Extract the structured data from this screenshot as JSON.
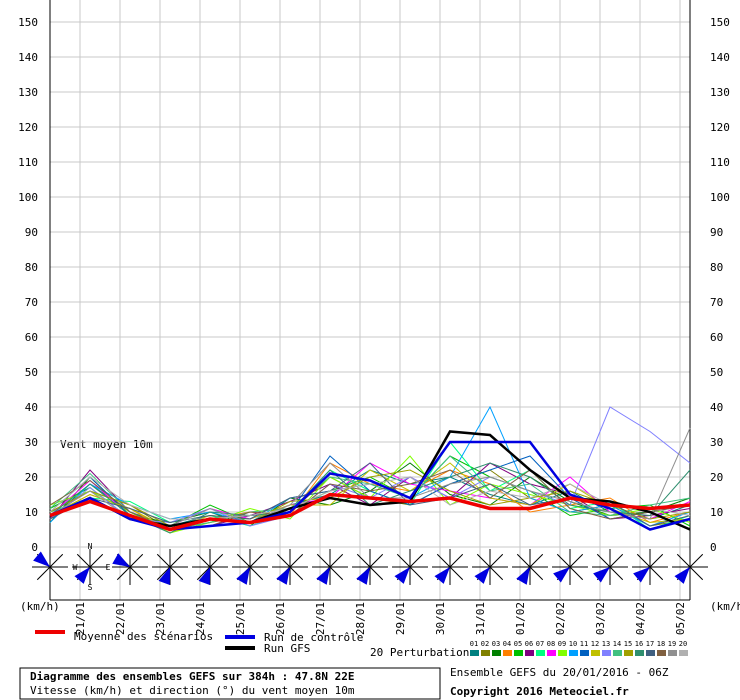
{
  "chart_data": {
    "type": "line",
    "annotation": "Vent moyen 10m",
    "y_unit": "(km/h)",
    "title": "Diagramme des ensembles GEFS sur 384h : 47.8N 22E",
    "subtitle": "Vitesse (km/h) et direction (°) du vent moyen 10m",
    "run_info": "Ensemble GEFS du 20/01/2016 - 06Z",
    "copyright": "Copyright 2016 Meteociel.fr",
    "perturbations_label": "20 Perturbations",
    "compass": [
      "N",
      "W",
      "E",
      "S"
    ],
    "grid": true,
    "xlim": [
      0,
      384
    ],
    "ylim": [
      0,
      150
    ],
    "yticks": [
      0,
      10,
      20,
      30,
      40,
      50,
      60,
      70,
      80,
      90,
      100,
      110,
      120,
      130,
      140,
      150
    ],
    "xticks": [
      {
        "value": 18,
        "label": "21/01"
      },
      {
        "value": 42,
        "label": "22/01"
      },
      {
        "value": 66,
        "label": "23/01"
      },
      {
        "value": 90,
        "label": "24/01"
      },
      {
        "value": 114,
        "label": "25/01"
      },
      {
        "value": 138,
        "label": "26/01"
      },
      {
        "value": 162,
        "label": "27/01"
      },
      {
        "value": 186,
        "label": "28/01"
      },
      {
        "value": 210,
        "label": "29/01"
      },
      {
        "value": 234,
        "label": "30/01"
      },
      {
        "value": 258,
        "label": "31/01"
      },
      {
        "value": 282,
        "label": "01/02"
      },
      {
        "value": 306,
        "label": "02/02"
      },
      {
        "value": 330,
        "label": "03/02"
      },
      {
        "value": 354,
        "label": "04/02"
      },
      {
        "value": 378,
        "label": "05/02"
      }
    ],
    "x": [
      0,
      24,
      48,
      72,
      96,
      120,
      144,
      168,
      192,
      216,
      240,
      264,
      288,
      312,
      336,
      360,
      384
    ],
    "wind_direction": [
      310,
      220,
      300,
      200,
      200,
      210,
      210,
      210,
      210,
      220,
      220,
      220,
      210,
      230,
      230,
      230,
      220
    ],
    "series": [
      {
        "name": "01",
        "color": "#008080",
        "width": 1,
        "values": [
          8,
          18,
          10,
          6,
          9,
          8,
          12,
          15,
          22,
          18,
          20,
          15,
          12,
          16,
          10,
          8,
          12
        ]
      },
      {
        "name": "02",
        "color": "#808000",
        "width": 1,
        "values": [
          10,
          16,
          12,
          5,
          7,
          9,
          10,
          20,
          14,
          12,
          18,
          22,
          14,
          10,
          12,
          6,
          8
        ]
      },
      {
        "name": "03",
        "color": "#008000",
        "width": 1,
        "values": [
          7,
          20,
          9,
          7,
          10,
          6,
          14,
          12,
          16,
          24,
          15,
          12,
          20,
          13,
          9,
          10,
          14
        ]
      },
      {
        "name": "04",
        "color": "#ff8000",
        "width": 1,
        "values": [
          9,
          15,
          11,
          4,
          8,
          10,
          9,
          24,
          18,
          16,
          22,
          18,
          10,
          12,
          14,
          7,
          10
        ]
      },
      {
        "name": "05",
        "color": "#00c000",
        "width": 1,
        "values": [
          11,
          17,
          8,
          6,
          12,
          7,
          11,
          16,
          20,
          14,
          26,
          20,
          16,
          9,
          11,
          12,
          6
        ]
      },
      {
        "name": "06",
        "color": "#800080",
        "width": 1,
        "values": [
          8,
          22,
          10,
          5,
          6,
          9,
          13,
          18,
          12,
          20,
          14,
          24,
          18,
          15,
          8,
          9,
          11
        ]
      },
      {
        "name": "07",
        "color": "#00ff80",
        "width": 1,
        "values": [
          10,
          14,
          13,
          7,
          9,
          6,
          10,
          22,
          16,
          12,
          30,
          16,
          22,
          11,
          13,
          5,
          9
        ]
      },
      {
        "name": "08",
        "color": "#ff00ff",
        "width": 1,
        "values": [
          9,
          19,
          9,
          6,
          11,
          8,
          12,
          14,
          24,
          18,
          16,
          14,
          12,
          20,
          10,
          8,
          13
        ]
      },
      {
        "name": "09",
        "color": "#80ff00",
        "width": 1,
        "values": [
          12,
          16,
          10,
          4,
          7,
          11,
          8,
          20,
          14,
          26,
          12,
          18,
          15,
          12,
          9,
          11,
          7
        ]
      },
      {
        "name": "10",
        "color": "#00a0ff",
        "width": 1,
        "values": [
          7,
          18,
          12,
          8,
          10,
          7,
          14,
          16,
          18,
          14,
          20,
          40,
          14,
          10,
          12,
          6,
          10
        ]
      },
      {
        "name": "11",
        "color": "#0060c0",
        "width": 1,
        "values": [
          10,
          20,
          9,
          6,
          8,
          9,
          10,
          26,
          16,
          12,
          18,
          22,
          26,
          14,
          8,
          10,
          12
        ]
      },
      {
        "name": "12",
        "color": "#c0c000",
        "width": 1,
        "values": [
          9,
          15,
          11,
          5,
          9,
          8,
          12,
          12,
          22,
          16,
          24,
          14,
          12,
          18,
          11,
          7,
          8
        ]
      },
      {
        "name": "13",
        "color": "#8080ff",
        "width": 1,
        "values": [
          8,
          17,
          8,
          7,
          11,
          6,
          9,
          18,
          14,
          20,
          14,
          20,
          16,
          12,
          40,
          33,
          24
        ]
      },
      {
        "name": "14",
        "color": "#40c080",
        "width": 1,
        "values": [
          11,
          21,
          10,
          5,
          7,
          10,
          11,
          20,
          18,
          14,
          26,
          16,
          18,
          10,
          9,
          12,
          14
        ]
      },
      {
        "name": "15",
        "color": "#a0a000",
        "width": 1,
        "values": [
          10,
          16,
          12,
          6,
          8,
          7,
          13,
          14,
          20,
          22,
          16,
          12,
          14,
          16,
          12,
          8,
          10
        ]
      },
      {
        "name": "16",
        "color": "#2f8f6f",
        "width": 1,
        "values": [
          9,
          18,
          9,
          4,
          10,
          9,
          10,
          22,
          12,
          16,
          20,
          24,
          20,
          12,
          10,
          9,
          22
        ]
      },
      {
        "name": "17",
        "color": "#406080",
        "width": 1,
        "values": [
          8,
          14,
          11,
          7,
          9,
          8,
          14,
          16,
          24,
          12,
          14,
          18,
          12,
          14,
          13,
          6,
          9
        ]
      },
      {
        "name": "18",
        "color": "#806040",
        "width": 1,
        "values": [
          12,
          19,
          10,
          5,
          6,
          10,
          9,
          18,
          16,
          18,
          22,
          14,
          22,
          11,
          8,
          10,
          12
        ]
      },
      {
        "name": "19",
        "color": "#909090",
        "width": 1,
        "values": [
          9,
          16,
          8,
          6,
          11,
          7,
          12,
          24,
          14,
          14,
          18,
          20,
          16,
          13,
          10,
          8,
          34
        ]
      },
      {
        "name": "20",
        "color": "#b0b0b0",
        "width": 1,
        "values": [
          10,
          20,
          12,
          8,
          8,
          9,
          11,
          16,
          18,
          20,
          12,
          16,
          14,
          18,
          12,
          11,
          9
        ]
      },
      {
        "name": "Run GFS",
        "color": "#000000",
        "width": 2.5,
        "values": [
          9,
          14,
          8,
          6,
          8,
          7,
          11,
          14,
          12,
          13,
          33,
          32,
          22,
          14,
          13,
          10,
          5
        ]
      },
      {
        "name": "Run de contrôle",
        "color": "#0000e0",
        "width": 2.5,
        "values": [
          9,
          14,
          8,
          5,
          6,
          7,
          10,
          21,
          19,
          14,
          30,
          30,
          30,
          15,
          11,
          5,
          8
        ]
      },
      {
        "name": "Moyenne des scénarios",
        "color": "#ee0000",
        "width": 3.5,
        "values": [
          9,
          13,
          9,
          5,
          8,
          7,
          9,
          15,
          14,
          13,
          14,
          11,
          11,
          14,
          12,
          11,
          12
        ]
      }
    ]
  }
}
